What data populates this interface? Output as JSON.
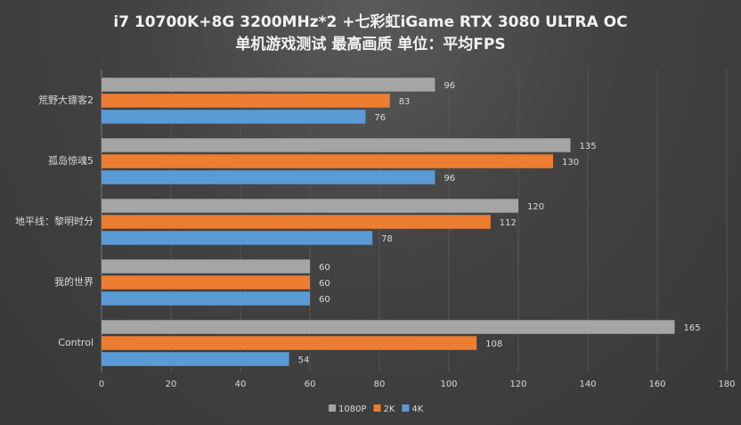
{
  "chart_data": {
    "type": "bar",
    "orientation": "horizontal",
    "title": "i7 10700K+8G 3200MHz*2 +七彩虹iGame RTX 3080 ULTRA OC",
    "subtitle": "单机游戏测试 最高画质 单位：平均FPS",
    "categories": [
      "荒野大镖客2",
      "孤岛惊魂5",
      "地平线：黎明时分",
      "我的世界",
      "Control"
    ],
    "series": [
      {
        "name": "1080P",
        "color": "#a5a5a5",
        "values": [
          96,
          135,
          120,
          60,
          165
        ]
      },
      {
        "name": "2K",
        "color": "#ed7d31",
        "values": [
          83,
          130,
          112,
          60,
          108
        ]
      },
      {
        "name": "4K",
        "color": "#5b9bd5",
        "values": [
          76,
          96,
          78,
          60,
          54
        ]
      }
    ],
    "xlim": [
      0,
      180
    ],
    "xticks": [
      "0",
      "20",
      "40",
      "60",
      "80",
      "100",
      "120",
      "140",
      "160",
      "180"
    ],
    "grid": true,
    "legend_position": "bottom"
  }
}
